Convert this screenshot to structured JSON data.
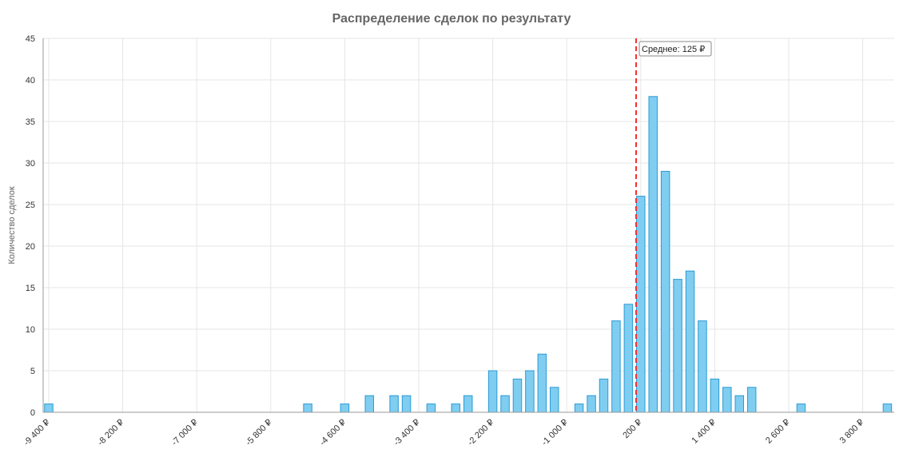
{
  "chart_data": {
    "type": "bar",
    "title": "Распределение сделок по результату",
    "ylabel": "Количество сделок",
    "xlabel": "",
    "ylim": [
      0,
      45
    ],
    "y_ticks": [
      0,
      5,
      10,
      15,
      20,
      25,
      30,
      35,
      40,
      45
    ],
    "x_tick_values": [
      -9400,
      -8200,
      -7000,
      -5800,
      -4600,
      -3400,
      -2200,
      -1000,
      200,
      1400,
      2600,
      3800
    ],
    "x_tick_labels": [
      "-9 400 ₽",
      "-8 200 ₽",
      "-7 000 ₽",
      "-5 800 ₽",
      "-4 600 ₽",
      "-3 400 ₽",
      "-2 200 ₽",
      "-1 000 ₽",
      "200 ₽",
      "1 400 ₽",
      "2 600 ₽",
      "3 800 ₽"
    ],
    "bin_width": 200,
    "x_range": [
      -9400,
      4400
    ],
    "bins": [
      {
        "x": -9400,
        "value": 1
      },
      {
        "x": -5200,
        "value": 1
      },
      {
        "x": -4600,
        "value": 1
      },
      {
        "x": -4200,
        "value": 2
      },
      {
        "x": -3800,
        "value": 2
      },
      {
        "x": -3600,
        "value": 2
      },
      {
        "x": -3200,
        "value": 1
      },
      {
        "x": -2800,
        "value": 1
      },
      {
        "x": -2600,
        "value": 2
      },
      {
        "x": -2200,
        "value": 5
      },
      {
        "x": -2000,
        "value": 2
      },
      {
        "x": -1800,
        "value": 4
      },
      {
        "x": -1600,
        "value": 5
      },
      {
        "x": -1400,
        "value": 7
      },
      {
        "x": -1200,
        "value": 3
      },
      {
        "x": -800,
        "value": 1
      },
      {
        "x": -600,
        "value": 2
      },
      {
        "x": -400,
        "value": 4
      },
      {
        "x": -200,
        "value": 11
      },
      {
        "x": 0,
        "value": 13
      },
      {
        "x": 200,
        "value": 26
      },
      {
        "x": 400,
        "value": 38
      },
      {
        "x": 600,
        "value": 29
      },
      {
        "x": 800,
        "value": 16
      },
      {
        "x": 1000,
        "value": 17
      },
      {
        "x": 1200,
        "value": 11
      },
      {
        "x": 1400,
        "value": 4
      },
      {
        "x": 1600,
        "value": 3
      },
      {
        "x": 1800,
        "value": 2
      },
      {
        "x": 2000,
        "value": 3
      },
      {
        "x": 2800,
        "value": 1
      },
      {
        "x": 4200,
        "value": 1
      }
    ],
    "mean": 125,
    "mean_label": "Среднее: 125 ₽",
    "grid": true,
    "legend": "none",
    "colors": {
      "bar_fill": "#7fcdf0",
      "bar_stroke": "#2c9bd4",
      "mean_line": "#ff2a2a",
      "grid": "#e6e6e6"
    }
  }
}
